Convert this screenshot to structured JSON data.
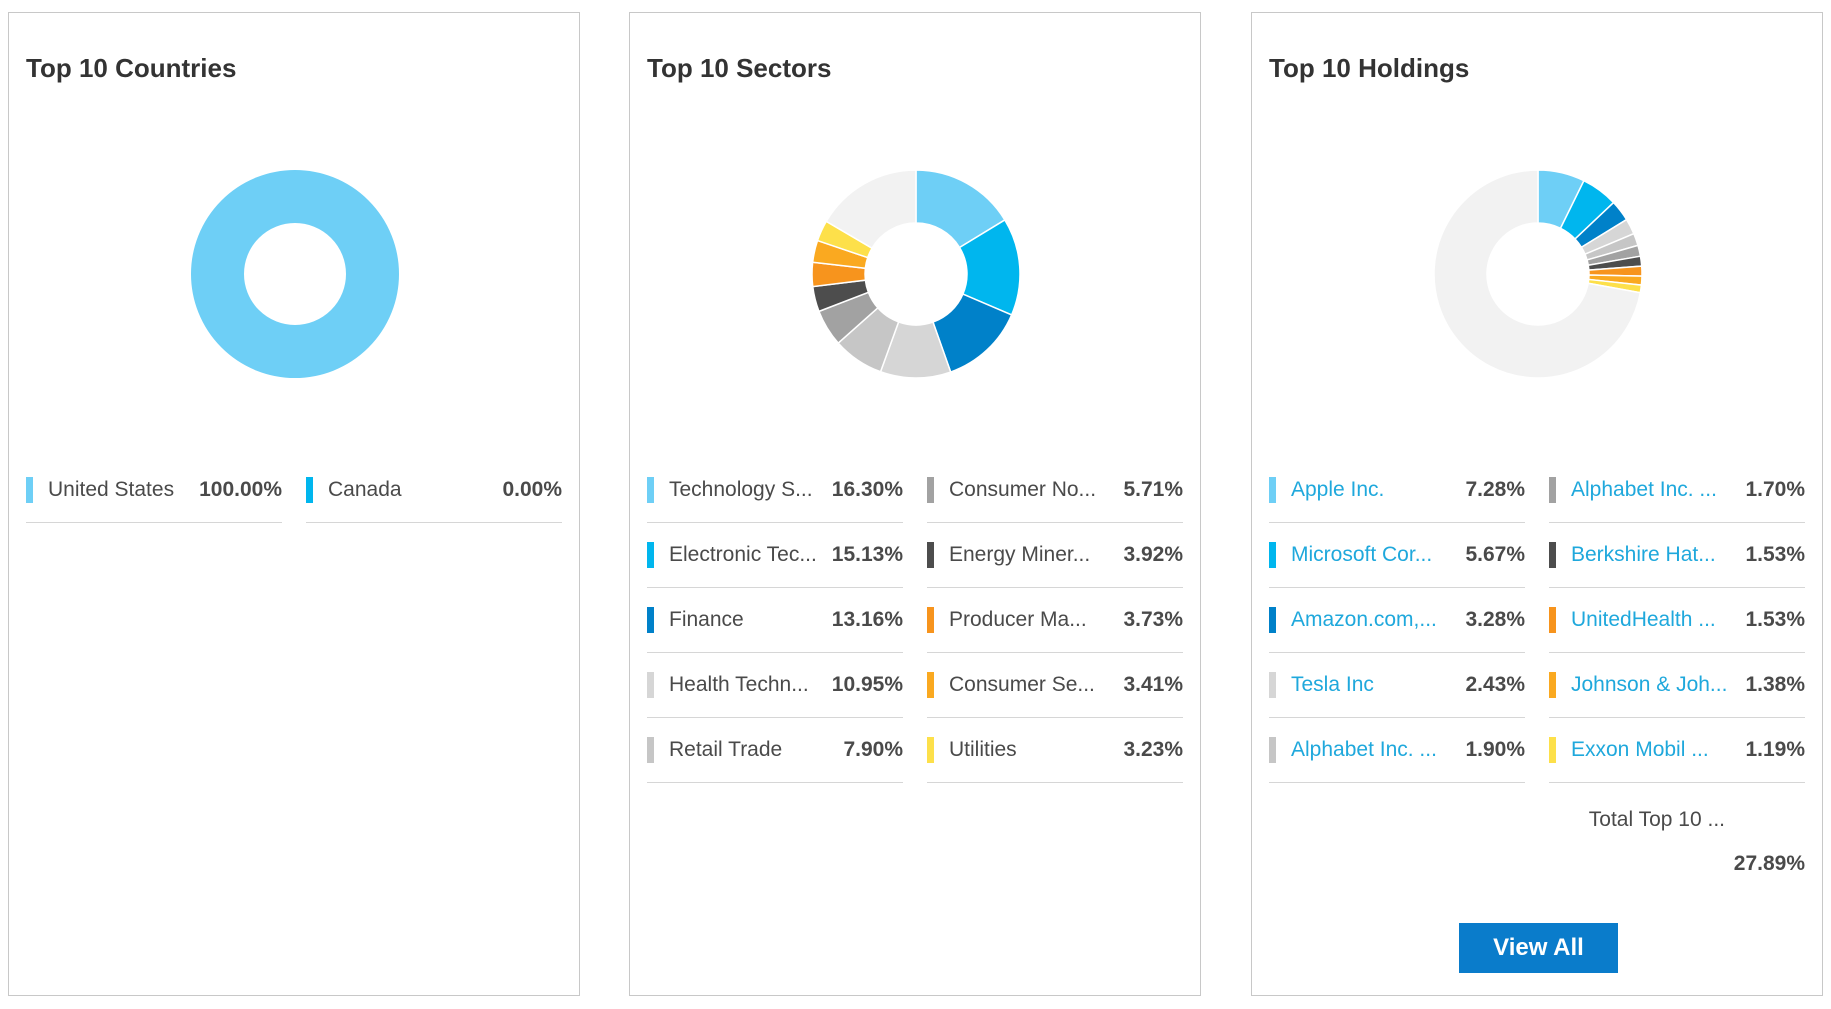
{
  "chart_data": [
    {
      "type": "pie",
      "title": "Top 10 Countries",
      "categories": [
        "United States",
        "Canada"
      ],
      "labels": [
        "United States",
        "Canada"
      ],
      "values": [
        100.0,
        0.0
      ],
      "value_labels": [
        "100.00%",
        "0.00%"
      ],
      "colors": [
        "#6ecff6",
        "#00b6ee"
      ],
      "remainder_color": "#f2f2f2"
    },
    {
      "type": "pie",
      "title": "Top 10 Sectors",
      "categories": [
        "Technology Services",
        "Electronic Technology",
        "Finance",
        "Health Technology",
        "Retail Trade",
        "Consumer Non-Durables",
        "Energy Minerals",
        "Producer Manufacturing",
        "Consumer Services",
        "Utilities"
      ],
      "labels": [
        "Technology S...",
        "Electronic Tec...",
        "Finance",
        "Health Techn...",
        "Retail Trade",
        "Consumer No...",
        "Energy Miner...",
        "Producer Ma...",
        "Consumer Se...",
        "Utilities"
      ],
      "values": [
        16.3,
        15.13,
        13.16,
        10.95,
        7.9,
        5.71,
        3.92,
        3.73,
        3.41,
        3.23
      ],
      "value_labels": [
        "16.30%",
        "15.13%",
        "13.16%",
        "10.95%",
        "7.90%",
        "5.71%",
        "3.92%",
        "3.73%",
        "3.41%",
        "3.23%"
      ],
      "colors": [
        "#6ecff6",
        "#00b6ee",
        "#0081c9",
        "#d6d6d6",
        "#c6c6c6",
        "#a2a2a2",
        "#4d4d4d",
        "#f7941d",
        "#faa920",
        "#fde04a"
      ],
      "remainder_color": "#f2f2f2"
    },
    {
      "type": "pie",
      "title": "Top 10 Holdings",
      "categories": [
        "Apple Inc.",
        "Microsoft Corporation",
        "Amazon.com, Inc.",
        "Tesla Inc",
        "Alphabet Inc. Class A",
        "Alphabet Inc. Class C",
        "Berkshire Hathaway",
        "UnitedHealth Group",
        "Johnson & Johnson",
        "Exxon Mobil Corporation"
      ],
      "labels": [
        "Apple Inc.",
        "Microsoft Cor...",
        "Amazon.com,...",
        "Tesla Inc",
        "Alphabet Inc. ...",
        "Alphabet Inc. ...",
        "Berkshire Hat...",
        "UnitedHealth ...",
        "Johnson & Joh...",
        "Exxon Mobil ..."
      ],
      "values": [
        7.28,
        5.67,
        3.28,
        2.43,
        1.9,
        1.7,
        1.53,
        1.53,
        1.38,
        1.19
      ],
      "value_labels": [
        "7.28%",
        "5.67%",
        "3.28%",
        "2.43%",
        "1.90%",
        "1.70%",
        "1.53%",
        "1.53%",
        "1.38%",
        "1.19%"
      ],
      "colors": [
        "#6ecff6",
        "#00b6ee",
        "#0081c9",
        "#d6d6d6",
        "#c6c6c6",
        "#a2a2a2",
        "#4d4d4d",
        "#f7941d",
        "#faa920",
        "#fde04a"
      ],
      "remainder_color": "#f2f2f2"
    }
  ],
  "holdings_total": {
    "label": "Total Top 10 ...",
    "value": "27.89%"
  },
  "view_all_label": "View All"
}
